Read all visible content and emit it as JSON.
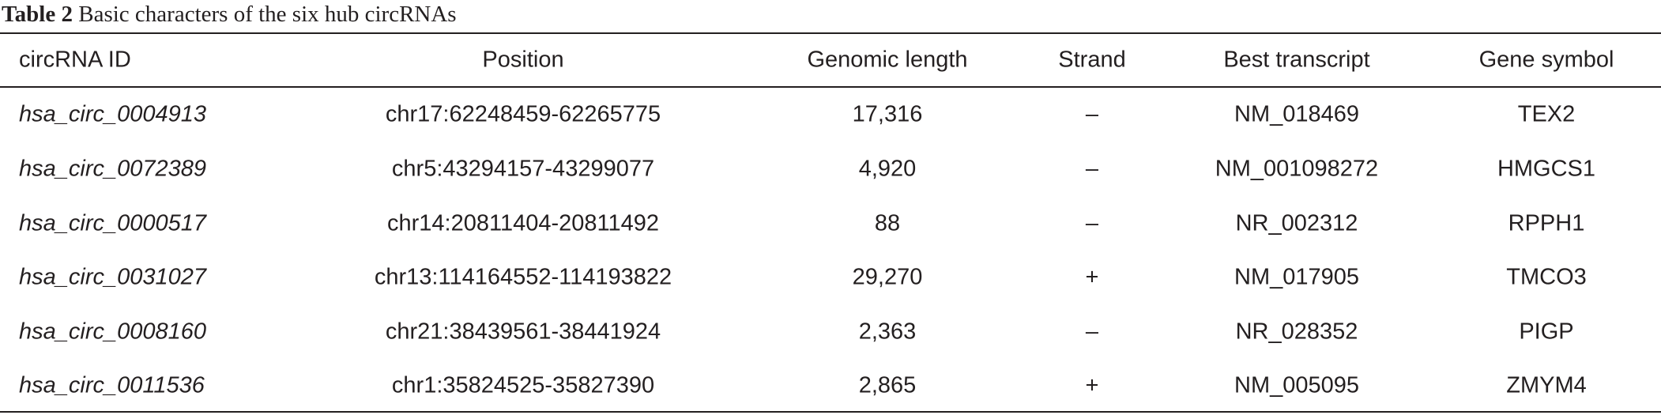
{
  "caption": {
    "label": "Table 2",
    "text": "Basic characters of the six hub circRNAs"
  },
  "table": {
    "header": [
      "circRNA ID",
      "Position",
      "Genomic length",
      "Strand",
      "Best transcript",
      "Gene symbol"
    ],
    "rows": [
      [
        "hsa_circ_0004913",
        "chr17:62248459-62265775",
        "17,316",
        "–",
        "NM_018469",
        "TEX2"
      ],
      [
        "hsa_circ_0072389",
        "chr5:43294157-43299077",
        "4,920",
        "–",
        "NM_001098272",
        "HMGCS1"
      ],
      [
        "hsa_circ_0000517",
        "chr14:20811404-20811492",
        "88",
        "–",
        "NR_002312",
        "RPPH1"
      ],
      [
        "hsa_circ_0031027",
        "chr13:114164552-114193822",
        "29,270",
        "+",
        "NM_017905",
        "TMCO3"
      ],
      [
        "hsa_circ_0008160",
        "chr21:38439561-38441924",
        "2,363",
        "–",
        "NR_028352",
        "PIGP"
      ],
      [
        "hsa_circ_0011536",
        "chr1:35824525-35827390",
        "2,865",
        "+",
        "NM_005095",
        "ZMYM4"
      ]
    ]
  }
}
